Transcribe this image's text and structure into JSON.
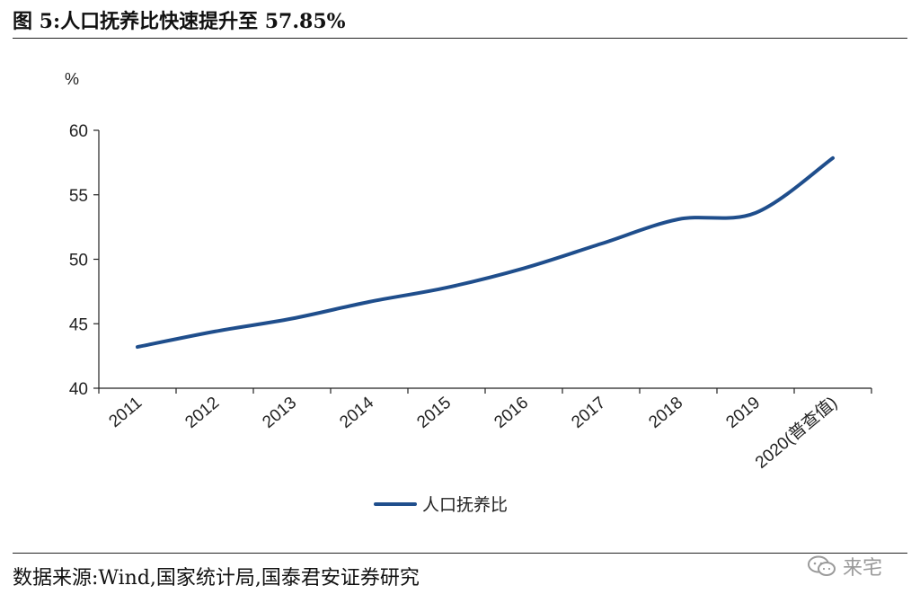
{
  "figure": {
    "title": "图 5:人口抚养比快速提升至 57.85%",
    "source": "数据来源:Wind,国家统计局,国泰君安证券研究",
    "watermark": "来宅"
  },
  "chart_data": {
    "type": "line",
    "title": "",
    "ylabel": "%",
    "xlabel": "",
    "ylim": [
      40,
      60
    ],
    "yticks": [
      40,
      45,
      50,
      55,
      60
    ],
    "categories": [
      "2011",
      "2012",
      "2013",
      "2014",
      "2015",
      "2016",
      "2017",
      "2018",
      "2019",
      "2020(普查值)"
    ],
    "series": [
      {
        "name": "人口抚养比",
        "color": "#1f4e8c",
        "values": [
          43.2,
          44.4,
          45.4,
          46.7,
          47.8,
          49.3,
          51.2,
          53.1,
          53.6,
          57.85
        ]
      }
    ],
    "legend": "bottom-center",
    "grid": false
  }
}
